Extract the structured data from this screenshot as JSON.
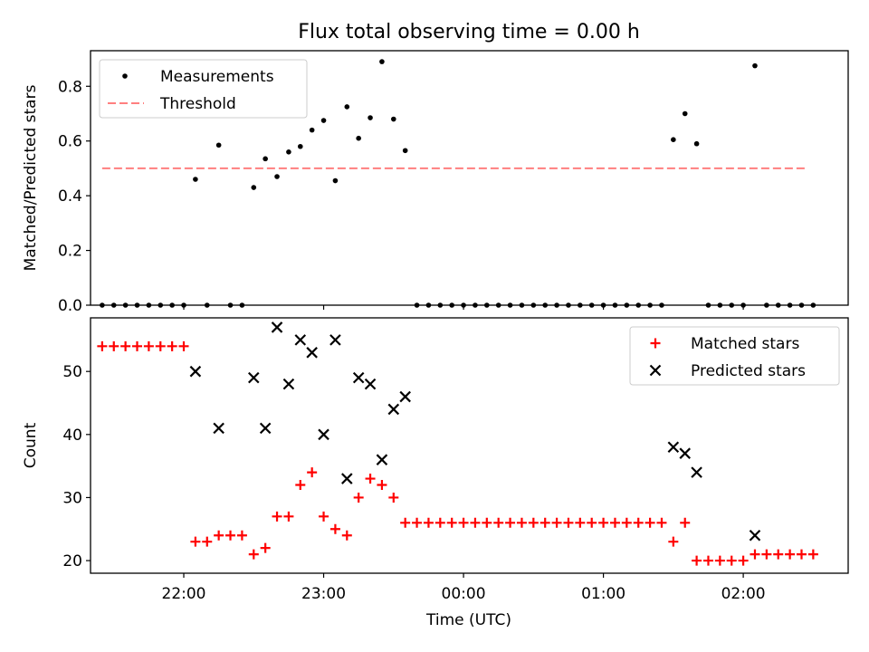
{
  "figure": {
    "title": "Flux total observing time = 0.00 h",
    "xlabel": "Time (UTC)"
  },
  "chart_data": [
    {
      "type": "scatter",
      "ylabel": "Matched/Predicted stars",
      "ylim": [
        0,
        0.93
      ],
      "yticks": [
        "0.0",
        "0.2",
        "0.4",
        "0.6",
        "0.8"
      ],
      "xlim": [
        "21:20",
        "02:45"
      ],
      "xticks": [
        "22:00",
        "23:00",
        "00:00",
        "01:00",
        "02:00"
      ],
      "xtick_labels_shown": false,
      "legend": {
        "position": "top-left",
        "entries": [
          "Measurements",
          "Threshold"
        ]
      },
      "threshold": {
        "name": "Threshold",
        "value": 0.5,
        "x_start": "21:25",
        "x_end": "02:27",
        "color": "#ff7f7f",
        "style": "dashed"
      },
      "series": [
        {
          "name": "Measurements",
          "color": "#000000",
          "marker": "dot",
          "points": [
            [
              "21:25",
              0
            ],
            [
              "21:30",
              0
            ],
            [
              "21:35",
              0
            ],
            [
              "21:40",
              0
            ],
            [
              "21:45",
              0
            ],
            [
              "21:50",
              0
            ],
            [
              "21:55",
              0
            ],
            [
              "22:00",
              0
            ],
            [
              "22:05",
              0.46
            ],
            [
              "22:10",
              0
            ],
            [
              "22:15",
              0.585
            ],
            [
              "22:20",
              0
            ],
            [
              "22:25",
              0
            ],
            [
              "22:30",
              0.43
            ],
            [
              "22:35",
              0.535
            ],
            [
              "22:40",
              0.47
            ],
            [
              "22:45",
              0.56
            ],
            [
              "22:50",
              0.58
            ],
            [
              "22:55",
              0.64
            ],
            [
              "23:00",
              0.675
            ],
            [
              "23:05",
              0.455
            ],
            [
              "23:10",
              0.725
            ],
            [
              "23:15",
              0.61
            ],
            [
              "23:20",
              0.685
            ],
            [
              "23:25",
              0.89
            ],
            [
              "23:30",
              0.68
            ],
            [
              "23:35",
              0.565
            ],
            [
              "23:40",
              0
            ],
            [
              "23:45",
              0
            ],
            [
              "23:50",
              0
            ],
            [
              "23:55",
              0
            ],
            [
              "00:00",
              0
            ],
            [
              "00:05",
              0
            ],
            [
              "00:10",
              0
            ],
            [
              "00:15",
              0
            ],
            [
              "00:20",
              0
            ],
            [
              "00:25",
              0
            ],
            [
              "00:30",
              0
            ],
            [
              "00:35",
              0
            ],
            [
              "00:40",
              0
            ],
            [
              "00:45",
              0
            ],
            [
              "00:50",
              0
            ],
            [
              "00:55",
              0
            ],
            [
              "01:00",
              0
            ],
            [
              "01:05",
              0
            ],
            [
              "01:10",
              0
            ],
            [
              "01:15",
              0
            ],
            [
              "01:20",
              0
            ],
            [
              "01:25",
              0
            ],
            [
              "01:30",
              0.605
            ],
            [
              "01:35",
              0.7
            ],
            [
              "01:40",
              0.59
            ],
            [
              "01:45",
              0
            ],
            [
              "01:50",
              0
            ],
            [
              "01:55",
              0
            ],
            [
              "02:00",
              0
            ],
            [
              "02:05",
              0.875
            ],
            [
              "02:10",
              0
            ],
            [
              "02:15",
              0
            ],
            [
              "02:20",
              0
            ],
            [
              "02:25",
              0
            ],
            [
              "02:30",
              0
            ]
          ]
        }
      ]
    },
    {
      "type": "scatter",
      "ylabel": "Count",
      "ylim": [
        18,
        58.5
      ],
      "yticks": [
        "20",
        "30",
        "40",
        "50"
      ],
      "xlim": [
        "21:20",
        "02:45"
      ],
      "xticks": [
        "22:00",
        "23:00",
        "00:00",
        "01:00",
        "02:00"
      ],
      "legend": {
        "position": "top-right",
        "entries": [
          "Matched stars",
          "Predicted stars"
        ]
      },
      "series": [
        {
          "name": "Matched stars",
          "color": "#ff0000",
          "marker": "plus",
          "points": [
            [
              "21:25",
              54
            ],
            [
              "21:30",
              54
            ],
            [
              "21:35",
              54
            ],
            [
              "21:40",
              54
            ],
            [
              "21:45",
              54
            ],
            [
              "21:50",
              54
            ],
            [
              "21:55",
              54
            ],
            [
              "22:00",
              54
            ],
            [
              "22:05",
              23
            ],
            [
              "22:10",
              23
            ],
            [
              "22:15",
              24
            ],
            [
              "22:20",
              24
            ],
            [
              "22:25",
              24
            ],
            [
              "22:30",
              21
            ],
            [
              "22:35",
              22
            ],
            [
              "22:40",
              27
            ],
            [
              "22:45",
              27
            ],
            [
              "22:50",
              32
            ],
            [
              "22:55",
              34
            ],
            [
              "23:00",
              27
            ],
            [
              "23:05",
              25
            ],
            [
              "23:10",
              24
            ],
            [
              "23:15",
              30
            ],
            [
              "23:20",
              33
            ],
            [
              "23:25",
              32
            ],
            [
              "23:30",
              30
            ],
            [
              "23:35",
              26
            ],
            [
              "23:40",
              26
            ],
            [
              "23:45",
              26
            ],
            [
              "23:50",
              26
            ],
            [
              "23:55",
              26
            ],
            [
              "00:00",
              26
            ],
            [
              "00:05",
              26
            ],
            [
              "00:10",
              26
            ],
            [
              "00:15",
              26
            ],
            [
              "00:20",
              26
            ],
            [
              "00:25",
              26
            ],
            [
              "00:30",
              26
            ],
            [
              "00:35",
              26
            ],
            [
              "00:40",
              26
            ],
            [
              "00:45",
              26
            ],
            [
              "00:50",
              26
            ],
            [
              "00:55",
              26
            ],
            [
              "01:00",
              26
            ],
            [
              "01:05",
              26
            ],
            [
              "01:10",
              26
            ],
            [
              "01:15",
              26
            ],
            [
              "01:20",
              26
            ],
            [
              "01:25",
              26
            ],
            [
              "01:30",
              23
            ],
            [
              "01:35",
              26
            ],
            [
              "01:40",
              20
            ],
            [
              "01:45",
              20
            ],
            [
              "01:50",
              20
            ],
            [
              "01:55",
              20
            ],
            [
              "02:00",
              20
            ],
            [
              "02:05",
              21
            ],
            [
              "02:10",
              21
            ],
            [
              "02:15",
              21
            ],
            [
              "02:20",
              21
            ],
            [
              "02:25",
              21
            ],
            [
              "02:30",
              21
            ]
          ]
        },
        {
          "name": "Predicted stars",
          "color": "#000000",
          "marker": "x",
          "points": [
            [
              "22:05",
              50
            ],
            [
              "22:15",
              41
            ],
            [
              "22:30",
              49
            ],
            [
              "22:35",
              41
            ],
            [
              "22:40",
              57
            ],
            [
              "22:45",
              48
            ],
            [
              "22:50",
              55
            ],
            [
              "22:55",
              53
            ],
            [
              "23:00",
              40
            ],
            [
              "23:05",
              55
            ],
            [
              "23:10",
              33
            ],
            [
              "23:15",
              49
            ],
            [
              "23:20",
              48
            ],
            [
              "23:25",
              36
            ],
            [
              "23:30",
              44
            ],
            [
              "23:35",
              46
            ],
            [
              "01:30",
              38
            ],
            [
              "01:35",
              37
            ],
            [
              "01:40",
              34
            ],
            [
              "02:05",
              24
            ]
          ]
        }
      ]
    }
  ]
}
